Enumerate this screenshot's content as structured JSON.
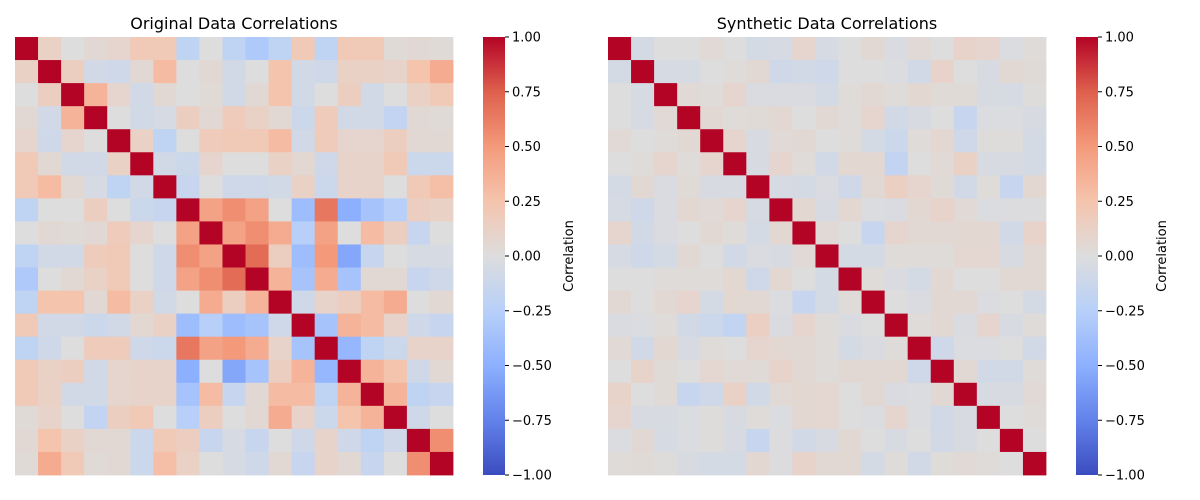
{
  "chart_data": [
    {
      "type": "heatmap",
      "title": "Original Data Correlations",
      "colorbar_label": "Correlation",
      "colormap": "coolwarm",
      "vmin": -1,
      "vmax": 1,
      "colorbar_ticks": [
        "1.00",
        "0.75",
        "0.50",
        "0.25",
        "0.00",
        "−0.25",
        "−0.50",
        "−0.75",
        "−1.00"
      ],
      "colorbar_tick_values": [
        1,
        0.75,
        0.5,
        0.25,
        0,
        -0.25,
        -0.5,
        -0.75,
        -1
      ],
      "values": [
        [
          1,
          0.12,
          0,
          0.05,
          0.08,
          0.2,
          0.2,
          -0.2,
          0,
          -0.2,
          -0.3,
          -0.2,
          0.2,
          -0.2,
          0.2,
          0.2,
          0.03,
          0.05,
          0.03
        ],
        [
          0.12,
          1,
          0.15,
          -0.08,
          -0.1,
          0.05,
          0.3,
          0,
          0.05,
          -0.08,
          0,
          0.25,
          -0.08,
          -0.1,
          0.12,
          0.12,
          0.1,
          0.25,
          0.4
        ],
        [
          0,
          0.15,
          1,
          0.35,
          0.08,
          -0.08,
          0.05,
          0,
          0.03,
          -0.08,
          0.05,
          0.25,
          -0.08,
          0,
          0.15,
          -0.08,
          0,
          0.12,
          0.2
        ],
        [
          0.05,
          -0.08,
          0.35,
          1,
          0,
          -0.08,
          -0.05,
          0.15,
          0.05,
          0.18,
          0.12,
          0.05,
          -0.12,
          0.18,
          -0.08,
          -0.08,
          -0.18,
          0.05,
          0.03
        ],
        [
          0.08,
          -0.1,
          0.08,
          0,
          1,
          0.12,
          -0.2,
          0,
          0.18,
          0.2,
          0.2,
          0.3,
          -0.08,
          0.18,
          0.08,
          0.08,
          0.15,
          0.05,
          0.05
        ],
        [
          0.2,
          0.05,
          -0.08,
          -0.08,
          0.12,
          1,
          -0.08,
          -0.12,
          0.08,
          0,
          0,
          0.12,
          0.06,
          -0.1,
          0.1,
          0.1,
          0.2,
          -0.12,
          -0.12
        ],
        [
          0.2,
          0.3,
          0.05,
          -0.05,
          -0.2,
          -0.08,
          1,
          -0.15,
          0,
          -0.1,
          -0.1,
          -0.08,
          0.12,
          -0.12,
          0.1,
          0.1,
          0,
          0.2,
          0.28
        ],
        [
          -0.2,
          0,
          0,
          0.15,
          0,
          -0.12,
          -0.15,
          1,
          0.45,
          0.55,
          0.45,
          0,
          -0.4,
          0.65,
          -0.5,
          -0.35,
          -0.25,
          0.15,
          0.12
        ],
        [
          0,
          0.05,
          0.03,
          0.05,
          0.18,
          0.08,
          0,
          0.45,
          1,
          0.45,
          0.55,
          0.4,
          -0.25,
          0.45,
          0,
          0.3,
          0.15,
          -0.15,
          0
        ],
        [
          -0.2,
          -0.08,
          -0.08,
          0.18,
          0.2,
          0,
          -0.1,
          0.55,
          0.45,
          1,
          0.7,
          0.15,
          -0.4,
          0.5,
          -0.55,
          -0.15,
          0,
          -0.05,
          -0.05
        ],
        [
          -0.3,
          0,
          0.05,
          0.12,
          0.2,
          0,
          -0.1,
          0.45,
          0.55,
          0.7,
          1,
          0.35,
          -0.35,
          0.4,
          -0.35,
          0.05,
          0.05,
          -0.15,
          -0.1
        ],
        [
          -0.2,
          0.25,
          0.25,
          0.05,
          0.3,
          0.12,
          -0.08,
          0,
          0.4,
          0.15,
          0.35,
          1,
          -0.1,
          0.1,
          0.15,
          0.3,
          0.4,
          0,
          0.05
        ],
        [
          0.2,
          -0.08,
          -0.08,
          -0.12,
          -0.08,
          0.06,
          0.12,
          -0.4,
          -0.25,
          -0.4,
          -0.35,
          -0.1,
          1,
          -0.35,
          0.35,
          0.3,
          0.1,
          -0.1,
          -0.15
        ],
        [
          -0.2,
          -0.1,
          0,
          0.18,
          0.18,
          -0.1,
          -0.12,
          0.65,
          0.45,
          0.5,
          0.4,
          0.1,
          -0.35,
          1,
          -0.45,
          -0.2,
          -0.12,
          0.1,
          0.1
        ],
        [
          0.2,
          0.12,
          0.15,
          -0.08,
          0.08,
          0.1,
          0.1,
          -0.5,
          0,
          -0.55,
          -0.35,
          0.15,
          0.35,
          -0.45,
          1,
          0.35,
          0.25,
          -0.1,
          0.05
        ],
        [
          0.2,
          0.12,
          -0.08,
          -0.08,
          0.08,
          0.1,
          0.1,
          -0.35,
          0.3,
          -0.15,
          0.05,
          0.3,
          0.3,
          -0.2,
          0.35,
          1,
          0.35,
          -0.2,
          -0.15
        ],
        [
          0.03,
          0.1,
          0,
          -0.18,
          0.15,
          0.2,
          0,
          -0.25,
          0.15,
          0,
          0.05,
          0.4,
          0.1,
          -0.12,
          0.25,
          0.35,
          1,
          -0.1,
          0
        ],
        [
          0.05,
          0.25,
          0.12,
          0.05,
          0.05,
          -0.12,
          0.2,
          0.15,
          -0.15,
          -0.05,
          -0.15,
          0,
          -0.1,
          0.1,
          -0.1,
          -0.2,
          -0.1,
          1,
          0.55
        ],
        [
          0.03,
          0.4,
          0.2,
          0.03,
          0.05,
          -0.12,
          0.28,
          0.12,
          0,
          -0.05,
          -0.1,
          0.05,
          -0.15,
          0.1,
          0.05,
          -0.15,
          0,
          0.55,
          1
        ]
      ]
    },
    {
      "type": "heatmap",
      "title": "Synthetic Data Correlations",
      "colorbar_label": "Correlation",
      "colormap": "coolwarm",
      "vmin": -1,
      "vmax": 1,
      "colorbar_ticks": [
        "1.00",
        "0.75",
        "0.50",
        "0.25",
        "0.00",
        "−0.25",
        "−0.50",
        "−0.75",
        "−1.00"
      ],
      "colorbar_tick_values": [
        1,
        0.75,
        0.5,
        0.25,
        0,
        -0.25,
        -0.5,
        -0.75,
        -1
      ],
      "values": [
        [
          1,
          -0.06,
          0,
          0,
          0.04,
          0,
          -0.06,
          -0.05,
          0.08,
          -0.05,
          0,
          0.05,
          -0.03,
          0.04,
          0,
          0.1,
          0.08,
          -0.02,
          0.02
        ],
        [
          -0.06,
          1,
          -0.05,
          -0.05,
          0,
          0.02,
          0.05,
          -0.1,
          -0.08,
          -0.1,
          0,
          0,
          -0.02,
          -0.08,
          0.1,
          0,
          -0.04,
          0.05,
          0.03
        ],
        [
          0,
          -0.05,
          1,
          0.04,
          0.02,
          0.08,
          -0.03,
          -0.03,
          -0.03,
          -0.06,
          0.02,
          0.05,
          0.02,
          0.06,
          0.03,
          0.03,
          -0.04,
          -0.05,
          0.01
        ],
        [
          0,
          -0.05,
          0.04,
          1,
          0.05,
          0.02,
          0.03,
          0.06,
          0,
          0.05,
          0.02,
          0.08,
          -0.08,
          -0.04,
          0,
          -0.15,
          -0.02,
          -0.02,
          -0.04
        ],
        [
          0.04,
          0,
          0.02,
          0.05,
          1,
          0.08,
          -0.04,
          0.04,
          0.05,
          0,
          0.02,
          -0.06,
          -0.12,
          0.02,
          0.07,
          -0.1,
          0.01,
          0.01,
          -0.06
        ],
        [
          0,
          0.02,
          0.08,
          0.02,
          0.08,
          1,
          -0.04,
          0.08,
          0.02,
          -0.08,
          0.06,
          0.06,
          -0.18,
          0,
          0.04,
          0.12,
          -0.04,
          -0.04,
          -0.06
        ],
        [
          -0.06,
          0.05,
          -0.03,
          0.03,
          -0.04,
          -0.04,
          1,
          -0.05,
          -0.06,
          -0.03,
          -0.1,
          0.05,
          0.14,
          0.08,
          0.03,
          -0.08,
          0.02,
          -0.15,
          0.06
        ],
        [
          -0.05,
          -0.1,
          -0.03,
          0.06,
          0.04,
          0.08,
          -0.05,
          1,
          0.06,
          -0.04,
          0.06,
          -0.02,
          -0.03,
          0.06,
          0.1,
          0.04,
          -0.02,
          -0.01,
          -0.01
        ],
        [
          0.08,
          -0.08,
          -0.03,
          0,
          0.05,
          0.02,
          -0.06,
          0.06,
          1,
          0.04,
          0,
          -0.15,
          0.08,
          0.05,
          0.05,
          0.06,
          0.06,
          -0.08,
          0.1
        ],
        [
          -0.05,
          -0.1,
          -0.06,
          0.05,
          0,
          -0.08,
          -0.03,
          -0.04,
          0.04,
          1,
          -0.06,
          -0.06,
          0.02,
          0.02,
          0.02,
          0.07,
          0.07,
          -0.04,
          0.05
        ],
        [
          0,
          0,
          0.02,
          0.02,
          0.02,
          0.06,
          -0.1,
          0.06,
          0,
          -0.06,
          1,
          0.02,
          -0.03,
          -0.06,
          0.05,
          0,
          0,
          0.05,
          0.05
        ],
        [
          0.05,
          0,
          0.05,
          0.08,
          -0.06,
          0.06,
          0.05,
          -0.02,
          -0.15,
          -0.06,
          0.02,
          1,
          0,
          -0.03,
          0.05,
          0.05,
          -0.02,
          0,
          -0.06
        ],
        [
          -0.03,
          -0.02,
          0.02,
          -0.08,
          -0.12,
          -0.18,
          0.14,
          -0.03,
          0.08,
          0.02,
          -0.03,
          0,
          1,
          0.02,
          0.05,
          -0.03,
          0.08,
          -0.04,
          0.02
        ],
        [
          0.04,
          -0.08,
          0.06,
          -0.04,
          0.02,
          0,
          0.08,
          0.06,
          0.05,
          0.02,
          -0.06,
          -0.03,
          0.02,
          1,
          -0.1,
          -0.02,
          -0.02,
          0,
          -0.08
        ],
        [
          0,
          0.1,
          0.03,
          0,
          0.07,
          0.04,
          0.03,
          0.1,
          0.05,
          0.02,
          0.05,
          0.05,
          0.05,
          -0.1,
          1,
          0.05,
          -0.08,
          -0.08,
          0.02
        ],
        [
          0.1,
          0,
          0.03,
          -0.15,
          -0.1,
          0.12,
          -0.08,
          0.04,
          0.06,
          0.07,
          0,
          0.05,
          -0.03,
          -0.02,
          0.05,
          1,
          -0.04,
          -0.04,
          0.04
        ],
        [
          0.08,
          -0.04,
          -0.04,
          -0.02,
          0.01,
          -0.04,
          0.02,
          -0.02,
          0.06,
          0.07,
          0,
          -0.02,
          0.08,
          -0.02,
          -0.08,
          -0.04,
          1,
          0,
          0.02
        ],
        [
          -0.02,
          0.05,
          -0.05,
          -0.02,
          0.01,
          -0.04,
          -0.15,
          -0.01,
          -0.08,
          -0.04,
          0.05,
          0,
          -0.04,
          0,
          -0.08,
          -0.04,
          0,
          1,
          0
        ],
        [
          0.02,
          0.03,
          0.01,
          -0.04,
          -0.06,
          -0.06,
          0.06,
          -0.01,
          0.1,
          0.05,
          0.05,
          -0.06,
          0.02,
          -0.08,
          0.02,
          0.04,
          0.02,
          0,
          1
        ]
      ]
    }
  ]
}
